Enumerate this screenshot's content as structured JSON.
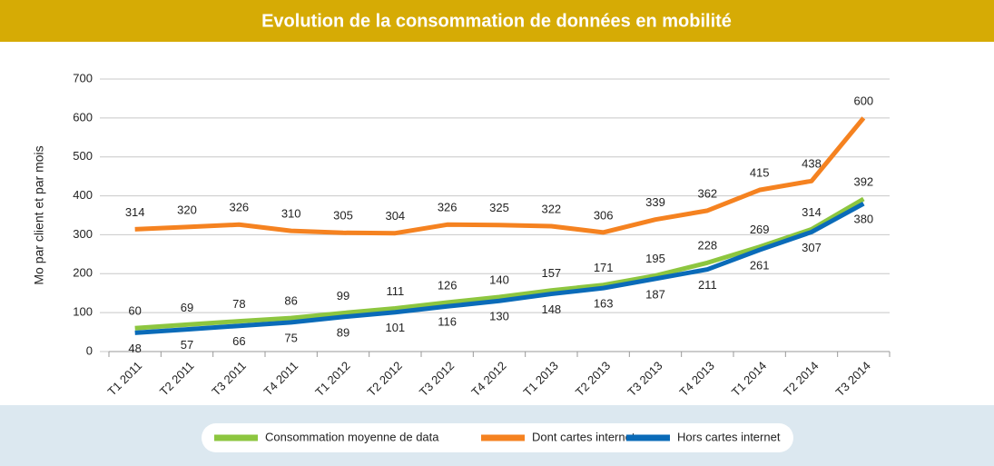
{
  "chart_data": {
    "type": "line",
    "title": "Evolution de la consommation de données en mobilité",
    "y_label": "Mo par client et par mois",
    "categories": [
      "T1 2011",
      "T2 2011",
      "T3 2011",
      "T4 2011",
      "T1 2012",
      "T2 2012",
      "T3 2012",
      "T4 2012",
      "T1 2013",
      "T2 2013",
      "T3 2013",
      "T4 2013",
      "T1 2014",
      "T2 2014",
      "T3 2014"
    ],
    "series": [
      {
        "name": "Consommation moyenne de data",
        "color": "#8dc63f",
        "values": [
          60,
          69,
          78,
          86,
          99,
          111,
          126,
          140,
          157,
          171,
          195,
          228,
          269,
          314,
          392
        ]
      },
      {
        "name": "Dont cartes internet",
        "color": "#f58220",
        "values": [
          314,
          320,
          326,
          310,
          305,
          304,
          326,
          325,
          322,
          306,
          339,
          362,
          415,
          438,
          600
        ]
      },
      {
        "name": "Hors cartes internet",
        "color": "#0a6bb8",
        "values": [
          48,
          57,
          66,
          75,
          89,
          101,
          116,
          130,
          148,
          163,
          187,
          211,
          261,
          307,
          380
        ]
      }
    ],
    "ylim": [
      0,
      700
    ],
    "yticks": [
      0,
      100,
      200,
      300,
      400,
      500,
      600,
      700
    ],
    "grid": true
  }
}
